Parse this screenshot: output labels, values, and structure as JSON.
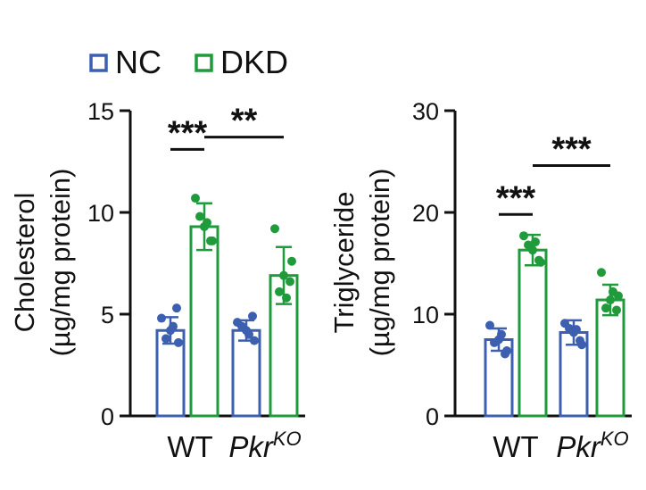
{
  "legend": {
    "items": [
      {
        "label": "NC",
        "color": "#3c5fb0"
      },
      {
        "label": "DKD",
        "color": "#1f9b3c"
      }
    ]
  },
  "chart_data": [
    {
      "type": "bar",
      "ylabel_line1": "Cholesterol",
      "ylabel_line2": "(µg/mg protein)",
      "ylim": [
        0,
        15
      ],
      "yticks": [
        0,
        5,
        10,
        15
      ],
      "categories": [
        {
          "main": "WT",
          "sup": ""
        },
        {
          "main": "Pkr",
          "sup": "KO"
        }
      ],
      "series": [
        {
          "name": "NC",
          "values": [
            4.2,
            4.2
          ],
          "sd": [
            0.65,
            0.5
          ],
          "points": [
            [
              4.2,
              4.8,
              3.6,
              3.8,
              5.3,
              4.4
            ],
            [
              4.2,
              4.6,
              3.7,
              4.4,
              4.9,
              4.0
            ]
          ]
        },
        {
          "name": "DKD",
          "values": [
            9.3,
            6.9
          ],
          "sd": [
            1.15,
            1.4
          ],
          "points": [
            [
              9.3,
              10.7,
              8.6,
              9.8,
              8.6,
              9.5
            ],
            [
              6.9,
              9.2,
              7.6,
              6.1,
              6.6,
              5.8
            ]
          ]
        }
      ],
      "significance": [
        {
          "label": "***",
          "y": 13.1,
          "from": 0,
          "to": 1
        },
        {
          "label": "**",
          "y": 13.7,
          "from": 1,
          "to": 3
        }
      ]
    },
    {
      "type": "bar",
      "ylabel_line1": "Triglyceride",
      "ylabel_line2": "(µg/mg protein)",
      "ylim": [
        0,
        30
      ],
      "yticks": [
        0,
        10,
        20,
        30
      ],
      "categories": [
        {
          "main": "WT",
          "sup": ""
        },
        {
          "main": "Pkr",
          "sup": "KO"
        }
      ],
      "series": [
        {
          "name": "NC",
          "values": [
            7.5,
            8.2
          ],
          "sd": [
            1.1,
            1.2
          ],
          "points": [
            [
              7.5,
              8.9,
              6.4,
              7.2,
              6.1,
              8.0
            ],
            [
              8.2,
              9.1,
              7.0,
              8.6,
              7.4,
              8.5
            ]
          ]
        },
        {
          "name": "DKD",
          "values": [
            16.3,
            11.4
          ],
          "sd": [
            1.5,
            1.5
          ],
          "points": [
            [
              16.3,
              17.7,
              15.1,
              16.8,
              15.3,
              17.1
            ],
            [
              11.4,
              14.1,
              11.8,
              10.6,
              10.4,
              12.2
            ]
          ]
        }
      ],
      "significance": [
        {
          "label": "***",
          "y": 19.8,
          "from": 0,
          "to": 1
        },
        {
          "label": "***",
          "y": 24.6,
          "from": 1,
          "to": 3
        }
      ]
    }
  ]
}
